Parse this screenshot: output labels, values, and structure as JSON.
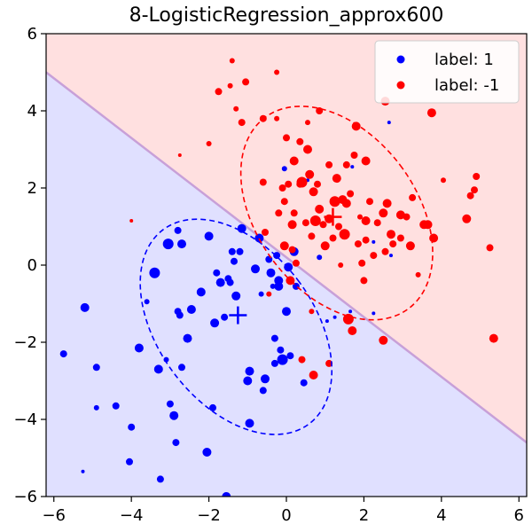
{
  "chart_data": {
    "type": "scatter",
    "title": "8-LogisticRegression_approx600",
    "xlabel": "",
    "ylabel": "",
    "xlim": [
      -6.2,
      6.2
    ],
    "ylim": [
      -6,
      6
    ],
    "x_ticks": [
      -6,
      -4,
      -2,
      0,
      2,
      4,
      6
    ],
    "y_ticks": [
      -6,
      -4,
      -2,
      0,
      2,
      4,
      6
    ],
    "x_tick_labels": [
      "−6",
      "−4",
      "−2",
      "0",
      "2",
      "4",
      "6"
    ],
    "y_tick_labels": [
      "−6",
      "−4",
      "−2",
      "0",
      "2",
      "4",
      "6"
    ],
    "grid": false,
    "legend_placement": "top-right",
    "decision_boundary": {
      "description": "linear",
      "points": [
        [
          -6.2,
          5.0
        ],
        [
          6.2,
          -4.6
        ]
      ]
    },
    "regions": [
      {
        "label": "-1",
        "color": "#ffe0e0",
        "side": "upper"
      },
      {
        "label": "1",
        "color": "#e0e0ff",
        "side": "lower"
      }
    ],
    "boundary_color": "#c8a0d8",
    "series": [
      {
        "name": "label: 1",
        "color": "#0000ff",
        "mean": [
          -1.25,
          -1.3
        ],
        "ellipse": {
          "cx": -1.3,
          "cy": -1.6,
          "rx": 2.0,
          "ry": 3.15,
          "angle_deg": -37
        },
        "points": [
          [
            -5.75,
            -2.3,
            4
          ],
          [
            -5.25,
            -5.35,
            2
          ],
          [
            -5.2,
            -1.1,
            5
          ],
          [
            -4.9,
            -3.7,
            3
          ],
          [
            -4.9,
            -2.65,
            4
          ],
          [
            -4.4,
            -3.65,
            4
          ],
          [
            -4.05,
            -5.1,
            4
          ],
          [
            -4.0,
            -4.2,
            4
          ],
          [
            -3.8,
            -2.15,
            5
          ],
          [
            -3.6,
            -0.95,
            3
          ],
          [
            -3.4,
            -0.2,
            6
          ],
          [
            -3.3,
            -2.7,
            5
          ],
          [
            -3.25,
            -5.55,
            4
          ],
          [
            -3.1,
            -2.45,
            3
          ],
          [
            -3.05,
            0.55,
            6
          ],
          [
            -3.0,
            -3.6,
            4
          ],
          [
            -2.9,
            -3.9,
            5
          ],
          [
            -2.85,
            -4.6,
            4
          ],
          [
            -2.8,
            0.9,
            4
          ],
          [
            -2.8,
            -1.2,
            4
          ],
          [
            -2.75,
            -1.3,
            4
          ],
          [
            -2.7,
            0.55,
            5
          ],
          [
            -2.7,
            -2.65,
            4
          ],
          [
            -2.55,
            -1.9,
            5
          ],
          [
            -2.45,
            -1.15,
            5
          ],
          [
            -2.2,
            -0.7,
            5
          ],
          [
            -2.05,
            -4.85,
            5
          ],
          [
            -2.0,
            0.75,
            5
          ],
          [
            -1.9,
            -3.7,
            4
          ],
          [
            -1.85,
            -1.5,
            5
          ],
          [
            -1.8,
            -0.2,
            4
          ],
          [
            -1.7,
            -0.45,
            5
          ],
          [
            -1.6,
            -1.35,
            4
          ],
          [
            -1.55,
            -6.0,
            5
          ],
          [
            -1.5,
            -0.35,
            4
          ],
          [
            -1.45,
            -0.45,
            4
          ],
          [
            -1.4,
            0.35,
            4
          ],
          [
            -1.35,
            0.1,
            4
          ],
          [
            -1.3,
            -0.8,
            5
          ],
          [
            -1.2,
            0.35,
            4
          ],
          [
            -1.15,
            0.95,
            5
          ],
          [
            -1.0,
            -3.0,
            5
          ],
          [
            -0.95,
            -4.1,
            5
          ],
          [
            -0.95,
            -2.75,
            5
          ],
          [
            -0.8,
            -0.1,
            5
          ],
          [
            -0.7,
            0.7,
            5
          ],
          [
            -0.65,
            -0.75,
            3
          ],
          [
            -0.6,
            -3.25,
            4
          ],
          [
            -0.55,
            -2.95,
            5
          ],
          [
            -0.45,
            0.15,
            4
          ],
          [
            -0.4,
            -0.2,
            5
          ],
          [
            -0.35,
            -0.55,
            3
          ],
          [
            -0.3,
            -1.9,
            4
          ],
          [
            -0.3,
            -2.55,
            4
          ],
          [
            -0.25,
            0.25,
            4
          ],
          [
            -0.2,
            -0.4,
            5
          ],
          [
            -0.2,
            -0.55,
            5
          ],
          [
            -0.15,
            -2.2,
            4
          ],
          [
            -0.1,
            -2.45,
            6
          ],
          [
            -0.05,
            2.5,
            3
          ],
          [
            0.0,
            -1.2,
            5
          ],
          [
            0.05,
            -0.05,
            5
          ],
          [
            0.1,
            -2.35,
            4
          ],
          [
            0.2,
            0.35,
            5
          ],
          [
            0.25,
            -0.55,
            4
          ],
          [
            0.45,
            -3.05,
            4
          ],
          [
            0.55,
            2.2,
            2
          ],
          [
            0.85,
            0.2,
            3
          ],
          [
            1.05,
            -1.45,
            2
          ],
          [
            1.25,
            -1.35,
            2
          ],
          [
            1.65,
            -1.2,
            2
          ],
          [
            1.7,
            2.55,
            2
          ],
          [
            2.25,
            -1.25,
            2
          ],
          [
            2.25,
            0.6,
            2
          ],
          [
            2.65,
            3.7,
            2
          ],
          [
            2.7,
            0.25,
            2
          ]
        ]
      },
      {
        "name": "label: -1",
        "color": "#ff0000",
        "mean": [
          1.2,
          1.25
        ],
        "ellipse": {
          "cx": 1.3,
          "cy": 1.35,
          "rx": 2.05,
          "ry": 3.1,
          "angle_deg": -37
        },
        "points": [
          [
            -4.0,
            1.15,
            2
          ],
          [
            -2.75,
            2.85,
            2
          ],
          [
            -2.0,
            3.15,
            3
          ],
          [
            -1.75,
            4.5,
            4
          ],
          [
            -1.45,
            4.65,
            3
          ],
          [
            -1.4,
            5.3,
            3
          ],
          [
            -1.3,
            4.05,
            3
          ],
          [
            -1.15,
            3.7,
            4
          ],
          [
            -1.05,
            4.75,
            4
          ],
          [
            -0.6,
            2.15,
            4
          ],
          [
            -0.6,
            3.8,
            4
          ],
          [
            -0.55,
            0.85,
            4
          ],
          [
            -0.45,
            -0.75,
            3
          ],
          [
            -0.25,
            3.8,
            3
          ],
          [
            -0.25,
            5.0,
            3
          ],
          [
            -0.2,
            1.35,
            4
          ],
          [
            -0.1,
            2.0,
            4
          ],
          [
            -0.05,
            1.65,
            4
          ],
          [
            -0.05,
            0.5,
            5
          ],
          [
            0.0,
            3.3,
            4
          ],
          [
            0.05,
            2.1,
            4
          ],
          [
            0.1,
            -0.4,
            5
          ],
          [
            0.15,
            0.4,
            4
          ],
          [
            0.15,
            1.05,
            5
          ],
          [
            0.2,
            1.35,
            4
          ],
          [
            0.2,
            2.7,
            5
          ],
          [
            0.25,
            0.05,
            4
          ],
          [
            0.35,
            3.2,
            4
          ],
          [
            0.35,
            2.1,
            4
          ],
          [
            0.4,
            -2.45,
            4
          ],
          [
            0.4,
            2.15,
            6
          ],
          [
            0.5,
            1.1,
            4
          ],
          [
            0.55,
            3.0,
            5
          ],
          [
            0.55,
            3.7,
            3
          ],
          [
            0.6,
            2.35,
            5
          ],
          [
            0.65,
            -1.2,
            3
          ],
          [
            0.65,
            0.75,
            4
          ],
          [
            0.7,
            1.9,
            5
          ],
          [
            0.7,
            -2.85,
            5
          ],
          [
            0.75,
            1.15,
            6
          ],
          [
            0.8,
            2.1,
            4
          ],
          [
            0.85,
            1.45,
            5
          ],
          [
            0.85,
            4.0,
            4
          ],
          [
            0.95,
            1.05,
            4
          ],
          [
            1.0,
            0.5,
            5
          ],
          [
            1.1,
            1.2,
            5
          ],
          [
            1.1,
            2.6,
            4
          ],
          [
            1.1,
            -2.55,
            4
          ],
          [
            1.2,
            0.7,
            4
          ],
          [
            1.25,
            1.65,
            6
          ],
          [
            1.3,
            2.25,
            5
          ],
          [
            1.35,
            1.0,
            4
          ],
          [
            1.4,
            0.0,
            3
          ],
          [
            1.45,
            1.7,
            5
          ],
          [
            1.5,
            0.8,
            6
          ],
          [
            1.55,
            1.6,
            5
          ],
          [
            1.55,
            2.6,
            4
          ],
          [
            1.6,
            -1.4,
            6
          ],
          [
            1.65,
            1.85,
            4
          ],
          [
            1.7,
            -1.7,
            5
          ],
          [
            1.75,
            2.85,
            4
          ],
          [
            1.8,
            3.6,
            5
          ],
          [
            1.85,
            0.55,
            4
          ],
          [
            1.9,
            1.25,
            3
          ],
          [
            1.95,
            0.05,
            4
          ],
          [
            2.0,
            -0.4,
            4
          ],
          [
            2.05,
            1.15,
            5
          ],
          [
            2.05,
            0.65,
            4
          ],
          [
            2.05,
            2.7,
            5
          ],
          [
            2.15,
            1.65,
            4
          ],
          [
            2.25,
            0.25,
            4
          ],
          [
            2.35,
            1.1,
            4
          ],
          [
            2.5,
            1.35,
            5
          ],
          [
            2.5,
            -1.95,
            5
          ],
          [
            2.55,
            0.35,
            4
          ],
          [
            2.55,
            4.25,
            5
          ],
          [
            2.6,
            1.6,
            5
          ],
          [
            2.7,
            0.8,
            5
          ],
          [
            2.75,
            0.55,
            4
          ],
          [
            2.95,
            1.3,
            5
          ],
          [
            2.95,
            0.7,
            4
          ],
          [
            3.1,
            1.25,
            4
          ],
          [
            3.2,
            0.5,
            5
          ],
          [
            3.25,
            1.75,
            4
          ],
          [
            3.4,
            -0.25,
            3
          ],
          [
            3.55,
            1.05,
            5
          ],
          [
            3.65,
            1.05,
            5
          ],
          [
            3.75,
            3.95,
            5
          ],
          [
            3.8,
            0.7,
            5
          ],
          [
            4.05,
            2.2,
            3
          ],
          [
            4.65,
            1.2,
            5
          ],
          [
            4.75,
            1.8,
            4
          ],
          [
            4.85,
            1.95,
            4
          ],
          [
            4.9,
            2.3,
            4
          ],
          [
            5.25,
            0.45,
            4
          ],
          [
            5.35,
            -1.9,
            5
          ]
        ]
      }
    ]
  },
  "legend": {
    "entries": [
      {
        "label": "label: 1",
        "color": "#0000ff"
      },
      {
        "label": "label: -1",
        "color": "#ff0000"
      }
    ]
  }
}
